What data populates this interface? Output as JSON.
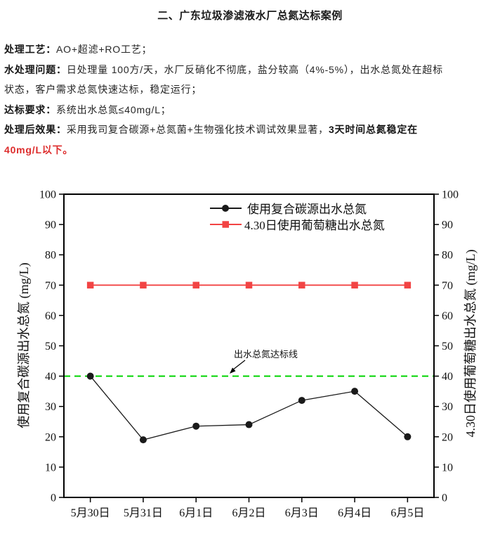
{
  "page": {
    "title": "二、广东垃圾渗滤液水厂总氮达标案例"
  },
  "colors": {
    "emphasis_red": "#dd2c2c",
    "series_black": "#1a1a1a",
    "series_red": "#f24444",
    "target_green": "#00d400"
  },
  "paragraphs": [
    {
      "segments": [
        {
          "text": "处理工艺：",
          "bold": true
        },
        {
          "text": "AO+超滤+RO工艺；",
          "bold": false
        }
      ]
    },
    {
      "segments": [
        {
          "text": "水处理问题：",
          "bold": true
        },
        {
          "text": "日处理量 100方/天，水厂反硝化不彻底，盐分较高（4%-5%），出水总氮处在超标",
          "bold": false
        }
      ]
    },
    {
      "segments": [
        {
          "text": "状态，客户需求总氮快速达标，稳定运行；",
          "bold": false
        }
      ]
    },
    {
      "segments": [
        {
          "text": "达标要求：",
          "bold": true
        },
        {
          "text": "系统出水总氮≤40mg/L；",
          "bold": false
        }
      ]
    },
    {
      "segments": [
        {
          "text": "处理后效果：",
          "bold": true
        },
        {
          "text": "采用我司复合碳源+总氮菌+生物强化技术调试效果显著，",
          "bold": false
        },
        {
          "text": "3天时间总氮稳定在",
          "bold": true
        }
      ]
    },
    {
      "segments": [
        {
          "text": "40mg/L以下。",
          "bold": true,
          "color": "#dd2c2c"
        }
      ]
    }
  ],
  "chart_data": {
    "type": "line",
    "categories": [
      "5月30日",
      "5月31日",
      "6月1日",
      "6月2日",
      "6月3日",
      "6月4日",
      "6月5日"
    ],
    "series": [
      {
        "name": "使用复合碳源出水总氮",
        "color": "#1a1a1a",
        "marker": "circle",
        "values": [
          40,
          19,
          23.5,
          24,
          32,
          35,
          20
        ]
      },
      {
        "name": "4.30日使用葡萄糖出水总氮",
        "color": "#f24444",
        "marker": "square",
        "values": [
          70,
          70,
          70,
          70,
          70,
          70,
          70
        ]
      }
    ],
    "ylabel_left": "使用复合碳源出水总氮 (mg/L)",
    "ylabel_right": "4.30日使用葡萄糖出水总氮 (mg/L)",
    "xlabel": "",
    "ylim": [
      0,
      100
    ],
    "ytick_step": 10,
    "grid": false,
    "legend_position": "top-center-inside",
    "reference_line": {
      "value": 40,
      "color": "#00d400",
      "style": "dashed",
      "label": "出水总氮达标线"
    }
  }
}
